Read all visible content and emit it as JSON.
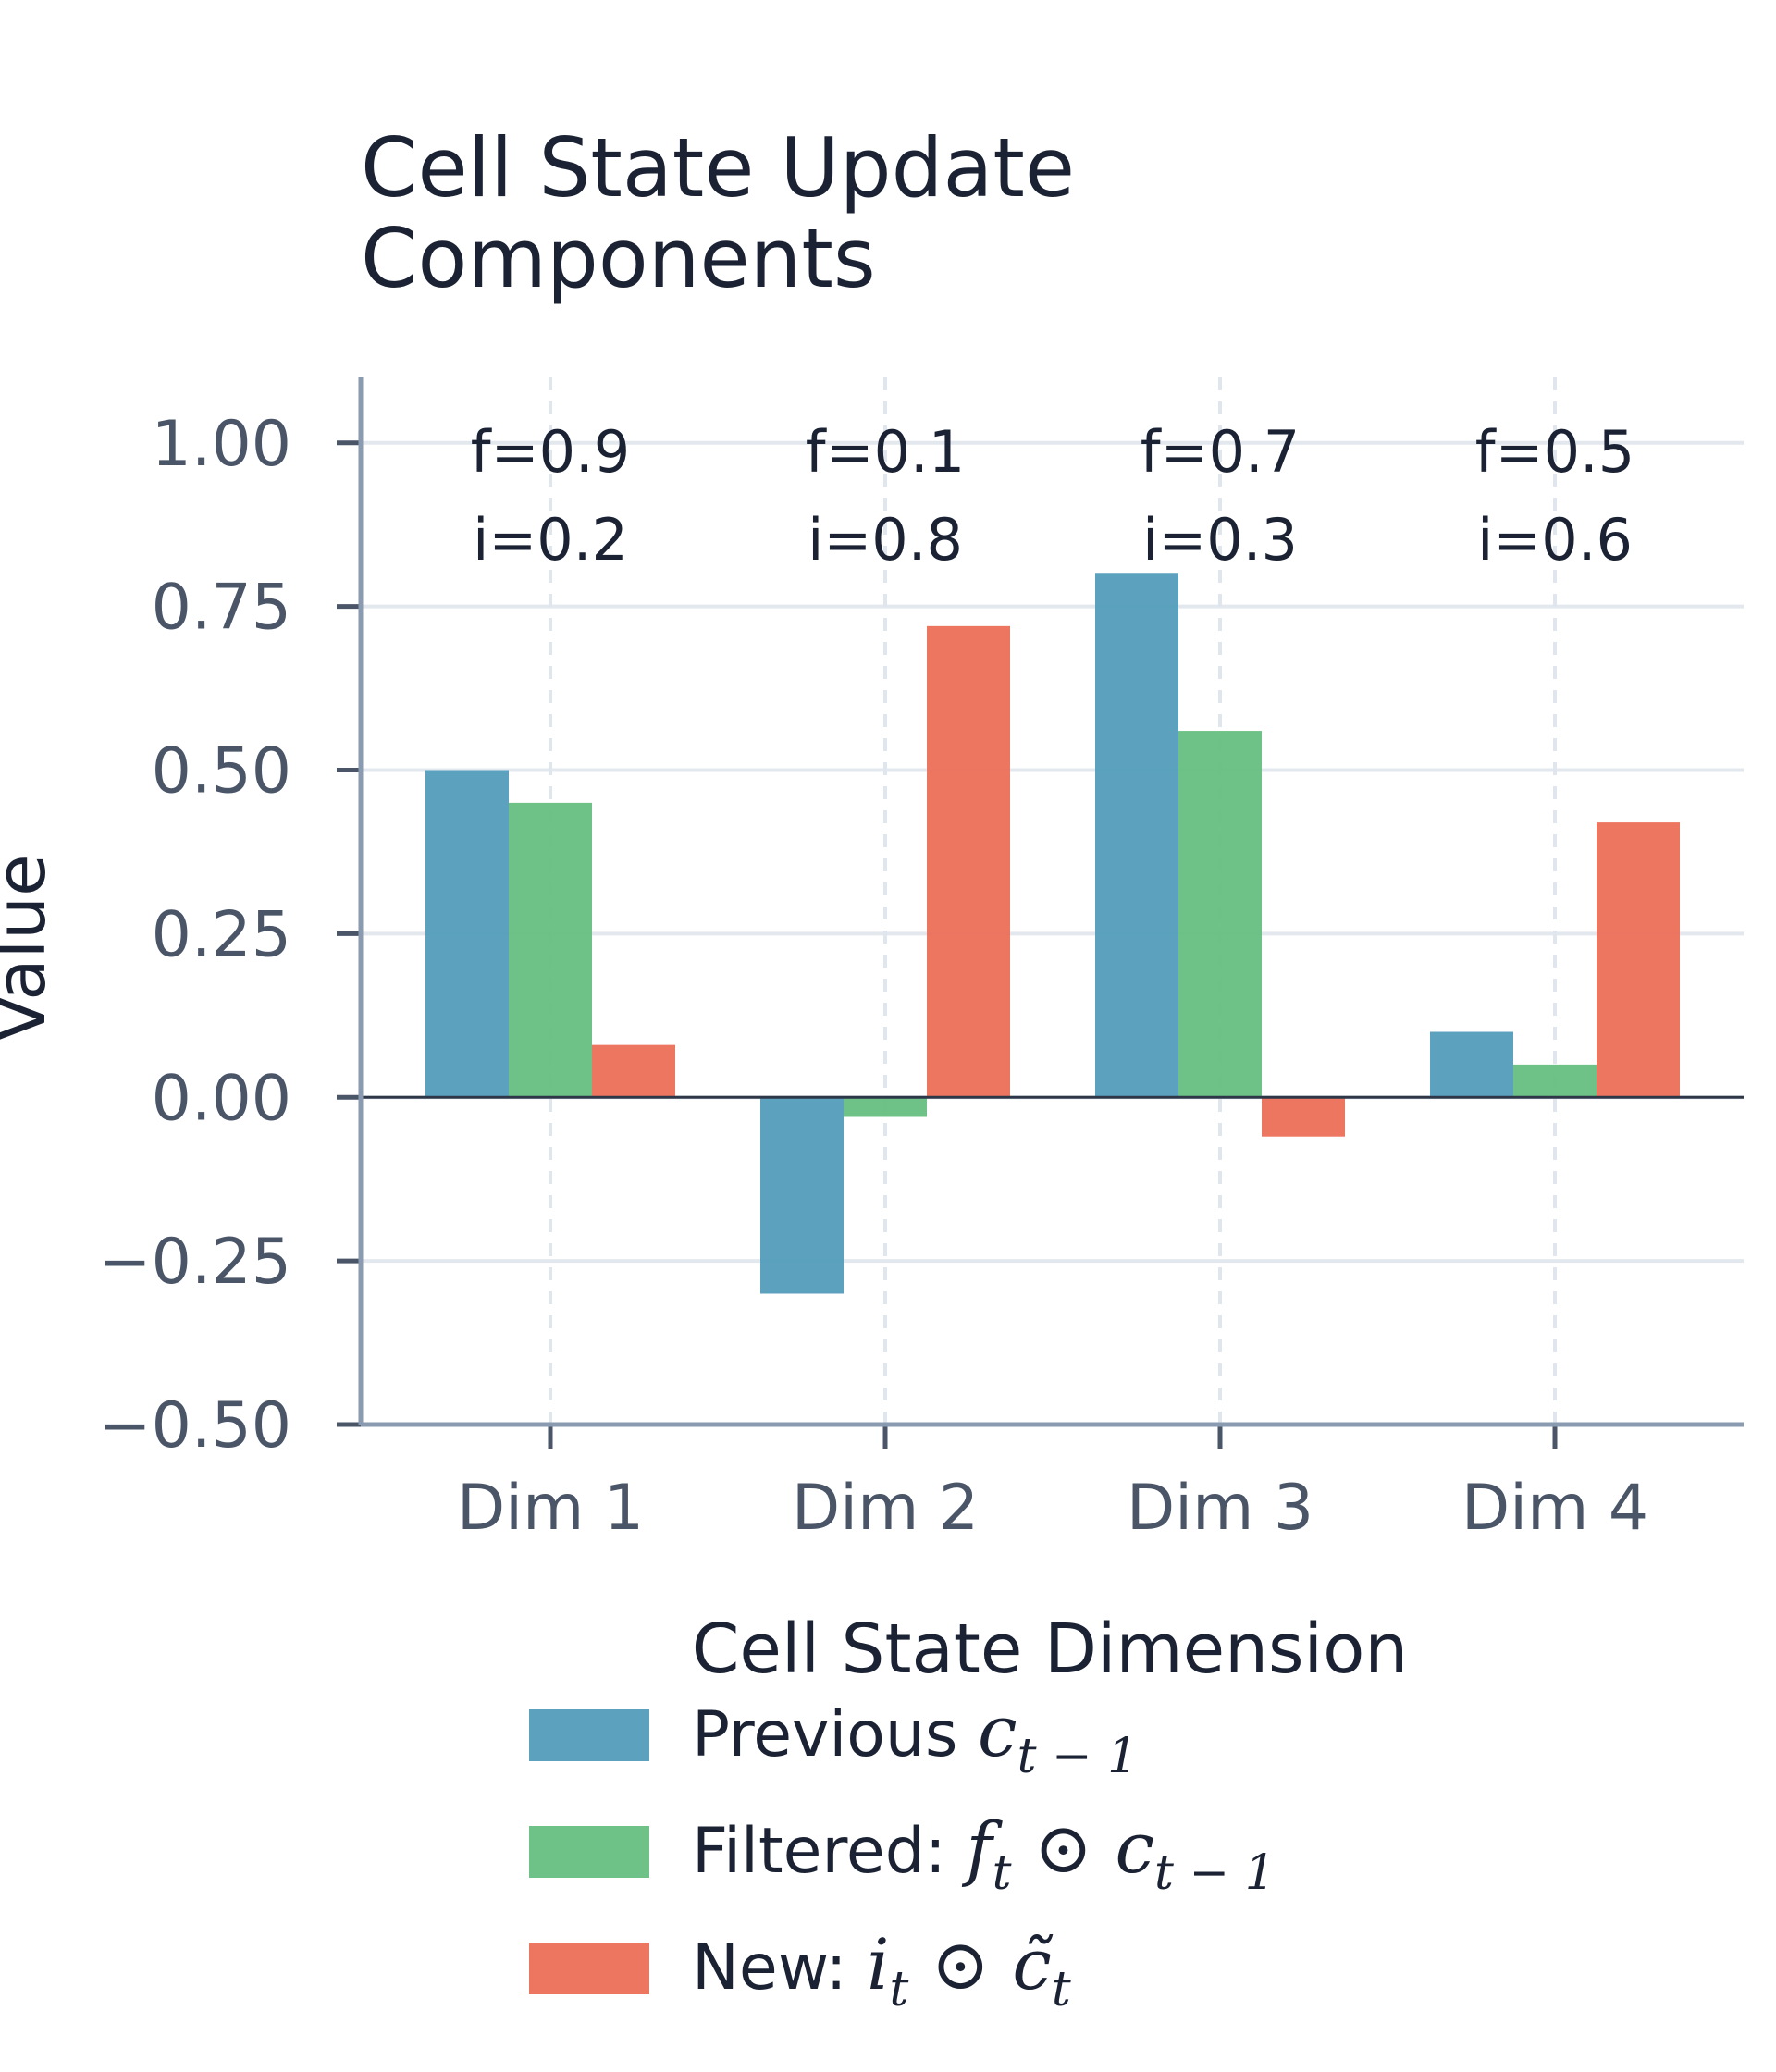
{
  "chart_data": {
    "type": "bar",
    "title_lines": [
      "Cell State Update",
      "Components"
    ],
    "xlabel": "Cell State Dimension",
    "ylabel": "Value",
    "categories": [
      "Dim 1",
      "Dim 2",
      "Dim 3",
      "Dim 4"
    ],
    "ylim": [
      -0.5,
      1.1
    ],
    "yticks": [
      "1.00",
      "0.75",
      "0.50",
      "0.25",
      "0.00",
      "−0.25",
      "−0.50"
    ],
    "ytick_values": [
      1.0,
      0.75,
      0.5,
      0.25,
      0.0,
      -0.25,
      -0.5
    ],
    "grid": true,
    "series": [
      {
        "name": "Previous c_{t-1}",
        "color": "#4e9aba",
        "values": [
          0.5,
          -0.3,
          0.8,
          0.1
        ]
      },
      {
        "name": "Filtered: f_t ⊙ c_{t-1}",
        "color": "#63bd7d",
        "values": [
          0.45,
          -0.03,
          0.56,
          0.05
        ]
      },
      {
        "name": "New: i_t ⊙ c̃_t",
        "color": "#ec6a54",
        "values": [
          0.08,
          0.72,
          -0.06,
          0.42
        ]
      }
    ],
    "annotations": [
      {
        "f": "f=0.9",
        "i": "i=0.2"
      },
      {
        "f": "f=0.1",
        "i": "i=0.8"
      },
      {
        "f": "f=0.7",
        "i": "i=0.3"
      },
      {
        "f": "f=0.5",
        "i": "i=0.6"
      }
    ],
    "legend": {
      "placement": "bottom",
      "entries": [
        {
          "prefix": "Previous ",
          "math": "c",
          "sub": "t − 1",
          "tail": "",
          "color": "#4e9aba"
        },
        {
          "prefix": "Filtered: ",
          "math": "f",
          "sub": "t",
          "tail": "⊙ c",
          "tail_sub": "t − 1",
          "color": "#63bd7d"
        },
        {
          "prefix": "New: ",
          "math": "i",
          "sub": "t",
          "tail": "⊙ c̃",
          "tail_sub": "t",
          "color": "#ec6a54"
        }
      ]
    }
  }
}
